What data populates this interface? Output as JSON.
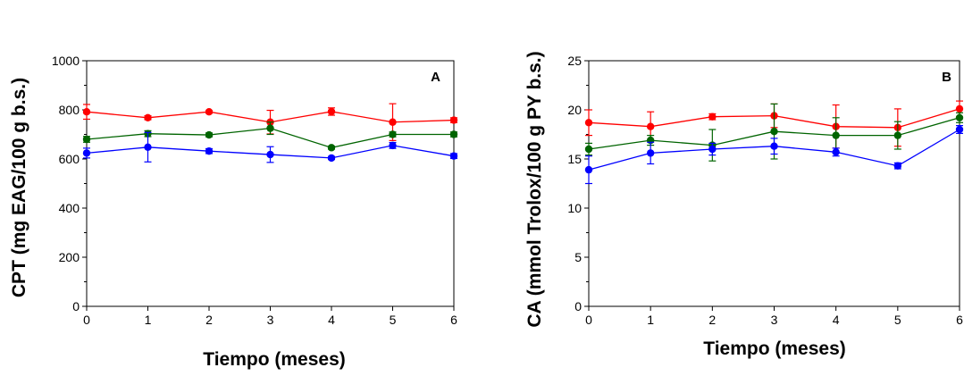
{
  "chart_data": [
    {
      "type": "line",
      "panel_label": "A",
      "xlabel": "Tiempo (meses)",
      "ylabel": "CPT (mg EAG/100 g b.s.)",
      "xlim": [
        0,
        6
      ],
      "ylim": [
        0,
        1000
      ],
      "x_ticks": [
        0,
        1,
        2,
        3,
        4,
        5,
        6
      ],
      "y_ticks": [
        0,
        200,
        400,
        600,
        800,
        1000
      ],
      "grid": false,
      "legend": "none",
      "x": [
        0,
        1,
        2,
        3,
        4,
        5,
        6
      ],
      "series": [
        {
          "color": "#ff0000",
          "values": [
            792,
            768,
            792,
            750,
            793,
            750,
            758
          ],
          "errors": [
            30,
            8,
            5,
            48,
            15,
            75,
            10
          ]
        },
        {
          "color": "#006400",
          "values": [
            680,
            703,
            698,
            725,
            646,
            700,
            700
          ],
          "errors": [
            12,
            12,
            8,
            25,
            6,
            10,
            10
          ]
        },
        {
          "color": "#0000ff",
          "values": [
            624,
            648,
            632,
            618,
            604,
            655,
            612
          ],
          "errors": [
            20,
            60,
            10,
            32,
            6,
            12,
            10
          ]
        }
      ]
    },
    {
      "type": "line",
      "panel_label": "B",
      "xlabel": "Tiempo (meses)",
      "ylabel": "CA (mmol Trolox/100 g PY b.s.)",
      "xlim": [
        0,
        6
      ],
      "ylim": [
        0,
        25
      ],
      "x_ticks": [
        0,
        1,
        2,
        3,
        4,
        5,
        6
      ],
      "y_ticks": [
        0,
        5,
        10,
        15,
        20,
        25
      ],
      "grid": false,
      "legend": "none",
      "x": [
        0,
        1,
        2,
        3,
        4,
        5,
        6
      ],
      "series": [
        {
          "color": "#ff0000",
          "values": [
            18.7,
            18.3,
            19.3,
            19.4,
            18.3,
            18.2,
            20.1
          ],
          "errors": [
            1.3,
            1.5,
            0.3,
            1.2,
            2.2,
            1.9,
            0.8
          ]
        },
        {
          "color": "#006400",
          "values": [
            16.0,
            16.9,
            16.4,
            17.8,
            17.4,
            17.4,
            19.2
          ],
          "errors": [
            0.6,
            0.5,
            1.6,
            2.8,
            1.8,
            1.4,
            0.5
          ]
        },
        {
          "color": "#0000ff",
          "values": [
            13.9,
            15.6,
            16.0,
            16.3,
            15.7,
            14.3,
            18.0
          ],
          "errors": [
            1.4,
            1.1,
            0.6,
            0.8,
            0.4,
            0.3,
            0.4
          ]
        }
      ]
    }
  ]
}
